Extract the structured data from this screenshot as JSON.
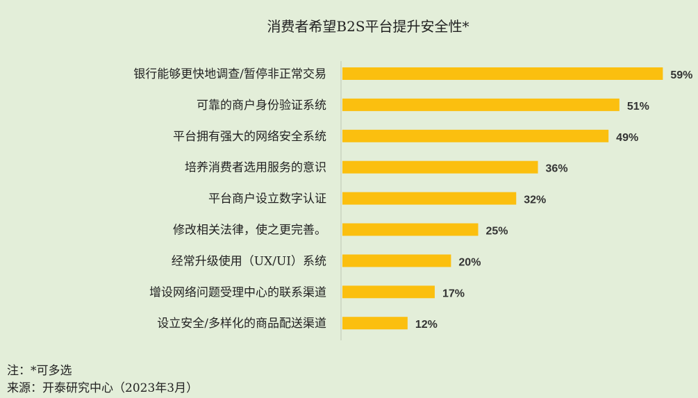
{
  "chart_data": {
    "type": "bar",
    "orientation": "horizontal",
    "title": "消费者希望B2S平台提升安全性*",
    "categories": [
      "银行能够更快地调查/暂停非正常交易",
      "可靠的商户身份验证系统",
      "平台拥有强大的网络安全系统",
      "培养消费者选用服务的意识",
      "平台商户设立数字认证",
      "修改相关法律，使之更完善。",
      "经常升级使用（UX/UI）系统",
      "增设网络问题受理中心的联系渠道",
      "设立安全/多样化的商品配送渠道"
    ],
    "values": [
      59,
      51,
      49,
      36,
      32,
      25,
      20,
      17,
      12
    ],
    "value_labels": [
      "59%",
      "51%",
      "49%",
      "36%",
      "32%",
      "25%",
      "20%",
      "17%",
      "12%"
    ],
    "unit": "%",
    "xlim": [
      0,
      60
    ],
    "grid": false,
    "bar_color": "#fbbf0f",
    "background_color": "#e3eed9"
  },
  "notes": {
    "note": "注：*可多选",
    "source": "来源：开泰研究中心（2023年3月）"
  }
}
